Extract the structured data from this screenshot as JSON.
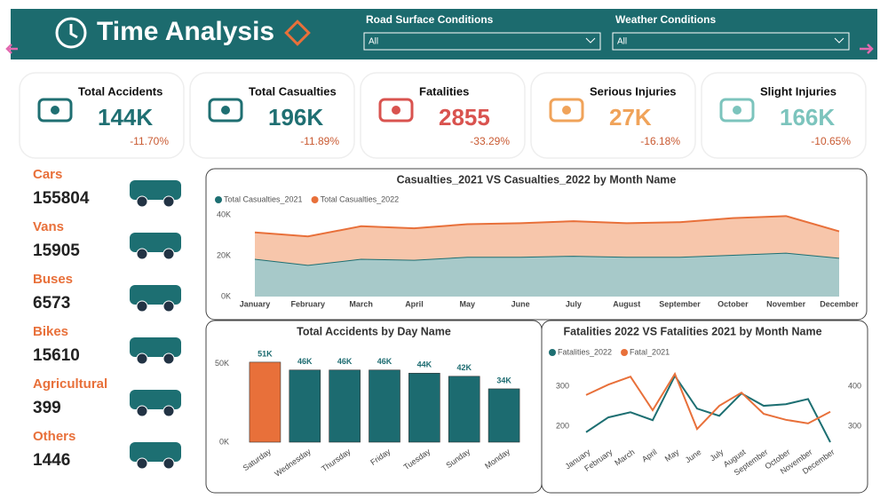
{
  "header": {
    "title": "Time Analysis",
    "filters": [
      {
        "label": "Road Surface Conditions",
        "value": "All"
      },
      {
        "label": "Weather Conditions",
        "value": "All"
      }
    ]
  },
  "kpis": [
    {
      "title": "Total Accidents",
      "value": "144K",
      "change": "-11.70%",
      "color": "#1f6f72"
    },
    {
      "title": "Total Casualties",
      "value": "196K",
      "change": "-11.89%",
      "color": "#1f6f72"
    },
    {
      "title": "Fatalities",
      "value": "2855",
      "change": "-33.29%",
      "color": "#d9534f"
    },
    {
      "title": "Serious Injuries",
      "value": "27K",
      "change": "-16.18%",
      "color": "#f0a35a"
    },
    {
      "title": "Slight Injuries",
      "value": "166K",
      "change": "-10.65%",
      "color": "#7cc4bd"
    }
  ],
  "vehicles": [
    {
      "label": "Cars",
      "value": 155804
    },
    {
      "label": "Vans",
      "value": 15905
    },
    {
      "label": "Buses",
      "value": 6573
    },
    {
      "label": "Bikes",
      "value": 15610
    },
    {
      "label": "Agricultural",
      "value": 399
    },
    {
      "label": "Others",
      "value": 1446
    }
  ],
  "chart_data": [
    {
      "type": "area",
      "title": "Casualties_2021 VS Casualties_2022 by Month Name",
      "stacked": true,
      "categories": [
        "January",
        "February",
        "March",
        "April",
        "May",
        "June",
        "July",
        "August",
        "September",
        "October",
        "November",
        "December"
      ],
      "series": [
        {
          "name": "Total Casualties_2021",
          "color": "#1d6f72",
          "fill": "#a7c9c9",
          "values": [
            18500,
            15500,
            18500,
            18000,
            19500,
            19500,
            20000,
            19500,
            19500,
            20500,
            21500,
            19000
          ]
        },
        {
          "name": "Total Casualties_2022",
          "color": "#e8703a",
          "fill": "#f7c6ab",
          "values": [
            13000,
            14000,
            16000,
            15500,
            16000,
            16500,
            17000,
            16500,
            17000,
            18000,
            18000,
            13000
          ]
        }
      ],
      "ylim": [
        0,
        44000
      ],
      "yticks": [
        {
          "value": 0,
          "label": "0K"
        },
        {
          "value": 20000,
          "label": "20K"
        },
        {
          "value": 40000,
          "label": "40K"
        }
      ]
    },
    {
      "type": "bar",
      "title": "Total Accidents by Day Name",
      "categories": [
        "Saturday",
        "Wednesday",
        "Thursday",
        "Friday",
        "Tuesday",
        "Sunday",
        "Monday"
      ],
      "values": [
        51000,
        46000,
        46000,
        46000,
        44000,
        42000,
        34000
      ],
      "value_labels": [
        "51K",
        "46K",
        "46K",
        "46K",
        "44K",
        "42K",
        "34K"
      ],
      "colors": [
        "#e8703a",
        "#1c6b70",
        "#1c6b70",
        "#1c6b70",
        "#1c6b70",
        "#1c6b70",
        "#1c6b70"
      ],
      "ylim": [
        0,
        60000
      ],
      "yticks": [
        {
          "value": 0,
          "label": "0K"
        },
        {
          "value": 50000,
          "label": "50K"
        }
      ]
    },
    {
      "type": "line",
      "title": "Fatalities 2022 VS Fatalities 2021 by Month Name",
      "categories": [
        "January",
        "February",
        "March",
        "April",
        "May",
        "June",
        "July",
        "August",
        "September",
        "October",
        "November",
        "December"
      ],
      "series": [
        {
          "name": "Fatalities_2022",
          "color": "#1d6f72",
          "values": [
            185,
            222,
            235,
            215,
            326,
            244,
            226,
            282,
            251,
            255,
            268,
            160
          ]
        },
        {
          "name": "Fatal_2021",
          "color": "#e8703a",
          "axis": "y2",
          "values": [
            378,
            404,
            424,
            340,
            431,
            293,
            351,
            384,
            331,
            316,
            307,
            336
          ]
        }
      ],
      "ylim": [
        150,
        350
      ],
      "yticks": [
        200,
        300
      ],
      "y2lim": [
        250,
        450
      ],
      "y2ticks": [
        300,
        400
      ]
    }
  ]
}
